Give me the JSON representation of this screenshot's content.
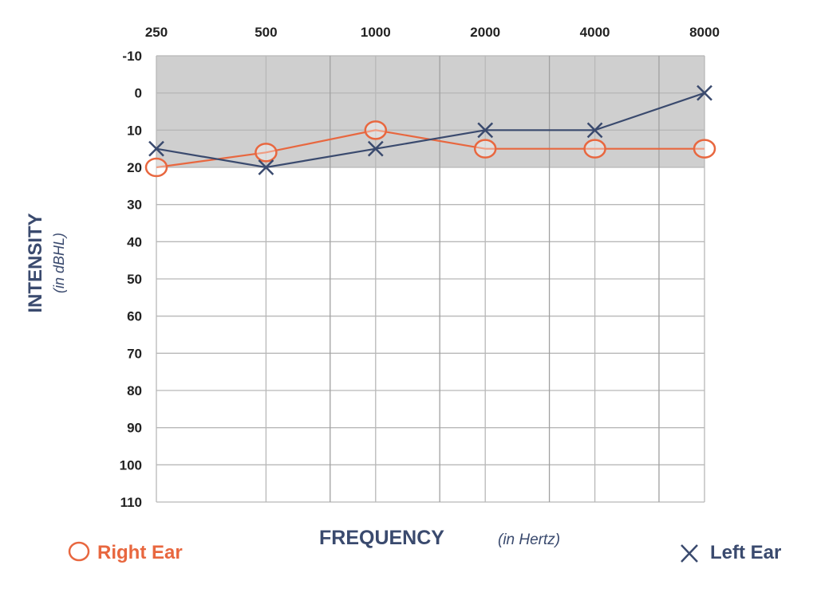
{
  "chart_data": {
    "type": "line",
    "x": [
      250,
      500,
      1000,
      2000,
      4000,
      8000
    ],
    "x_tick_labels": [
      "250",
      "500",
      "1000",
      "2000",
      "4000",
      "8000"
    ],
    "x_scale": "log",
    "x_axis_position": "top",
    "y_ticks": [
      -10,
      0,
      10,
      20,
      30,
      40,
      50,
      60,
      70,
      80,
      90,
      100,
      110
    ],
    "y_tick_labels": [
      "-10",
      "0",
      "10",
      "20",
      "30",
      "40",
      "50",
      "60",
      "70",
      "80",
      "90",
      "100",
      "110"
    ],
    "ylim": [
      -10,
      110
    ],
    "y_inverted": true,
    "grid": true,
    "normal_range_band": [
      -10,
      20
    ],
    "band_color": "#cfcfcf",
    "ylabel": "INTENSITY",
    "ylabel_unit": "(in dBHL)",
    "xlabel": "FREQUENCY",
    "xlabel_unit": "(in Hertz)",
    "legend_placement": "bottom",
    "series": [
      {
        "name": "Right Ear",
        "marker": "circle",
        "color": "#e8673f",
        "values": [
          20,
          16,
          10,
          15,
          15,
          15
        ]
      },
      {
        "name": "Left Ear",
        "marker": "x",
        "color": "#3a4a6e",
        "values": [
          15,
          20,
          15,
          10,
          10,
          0
        ]
      }
    ]
  }
}
